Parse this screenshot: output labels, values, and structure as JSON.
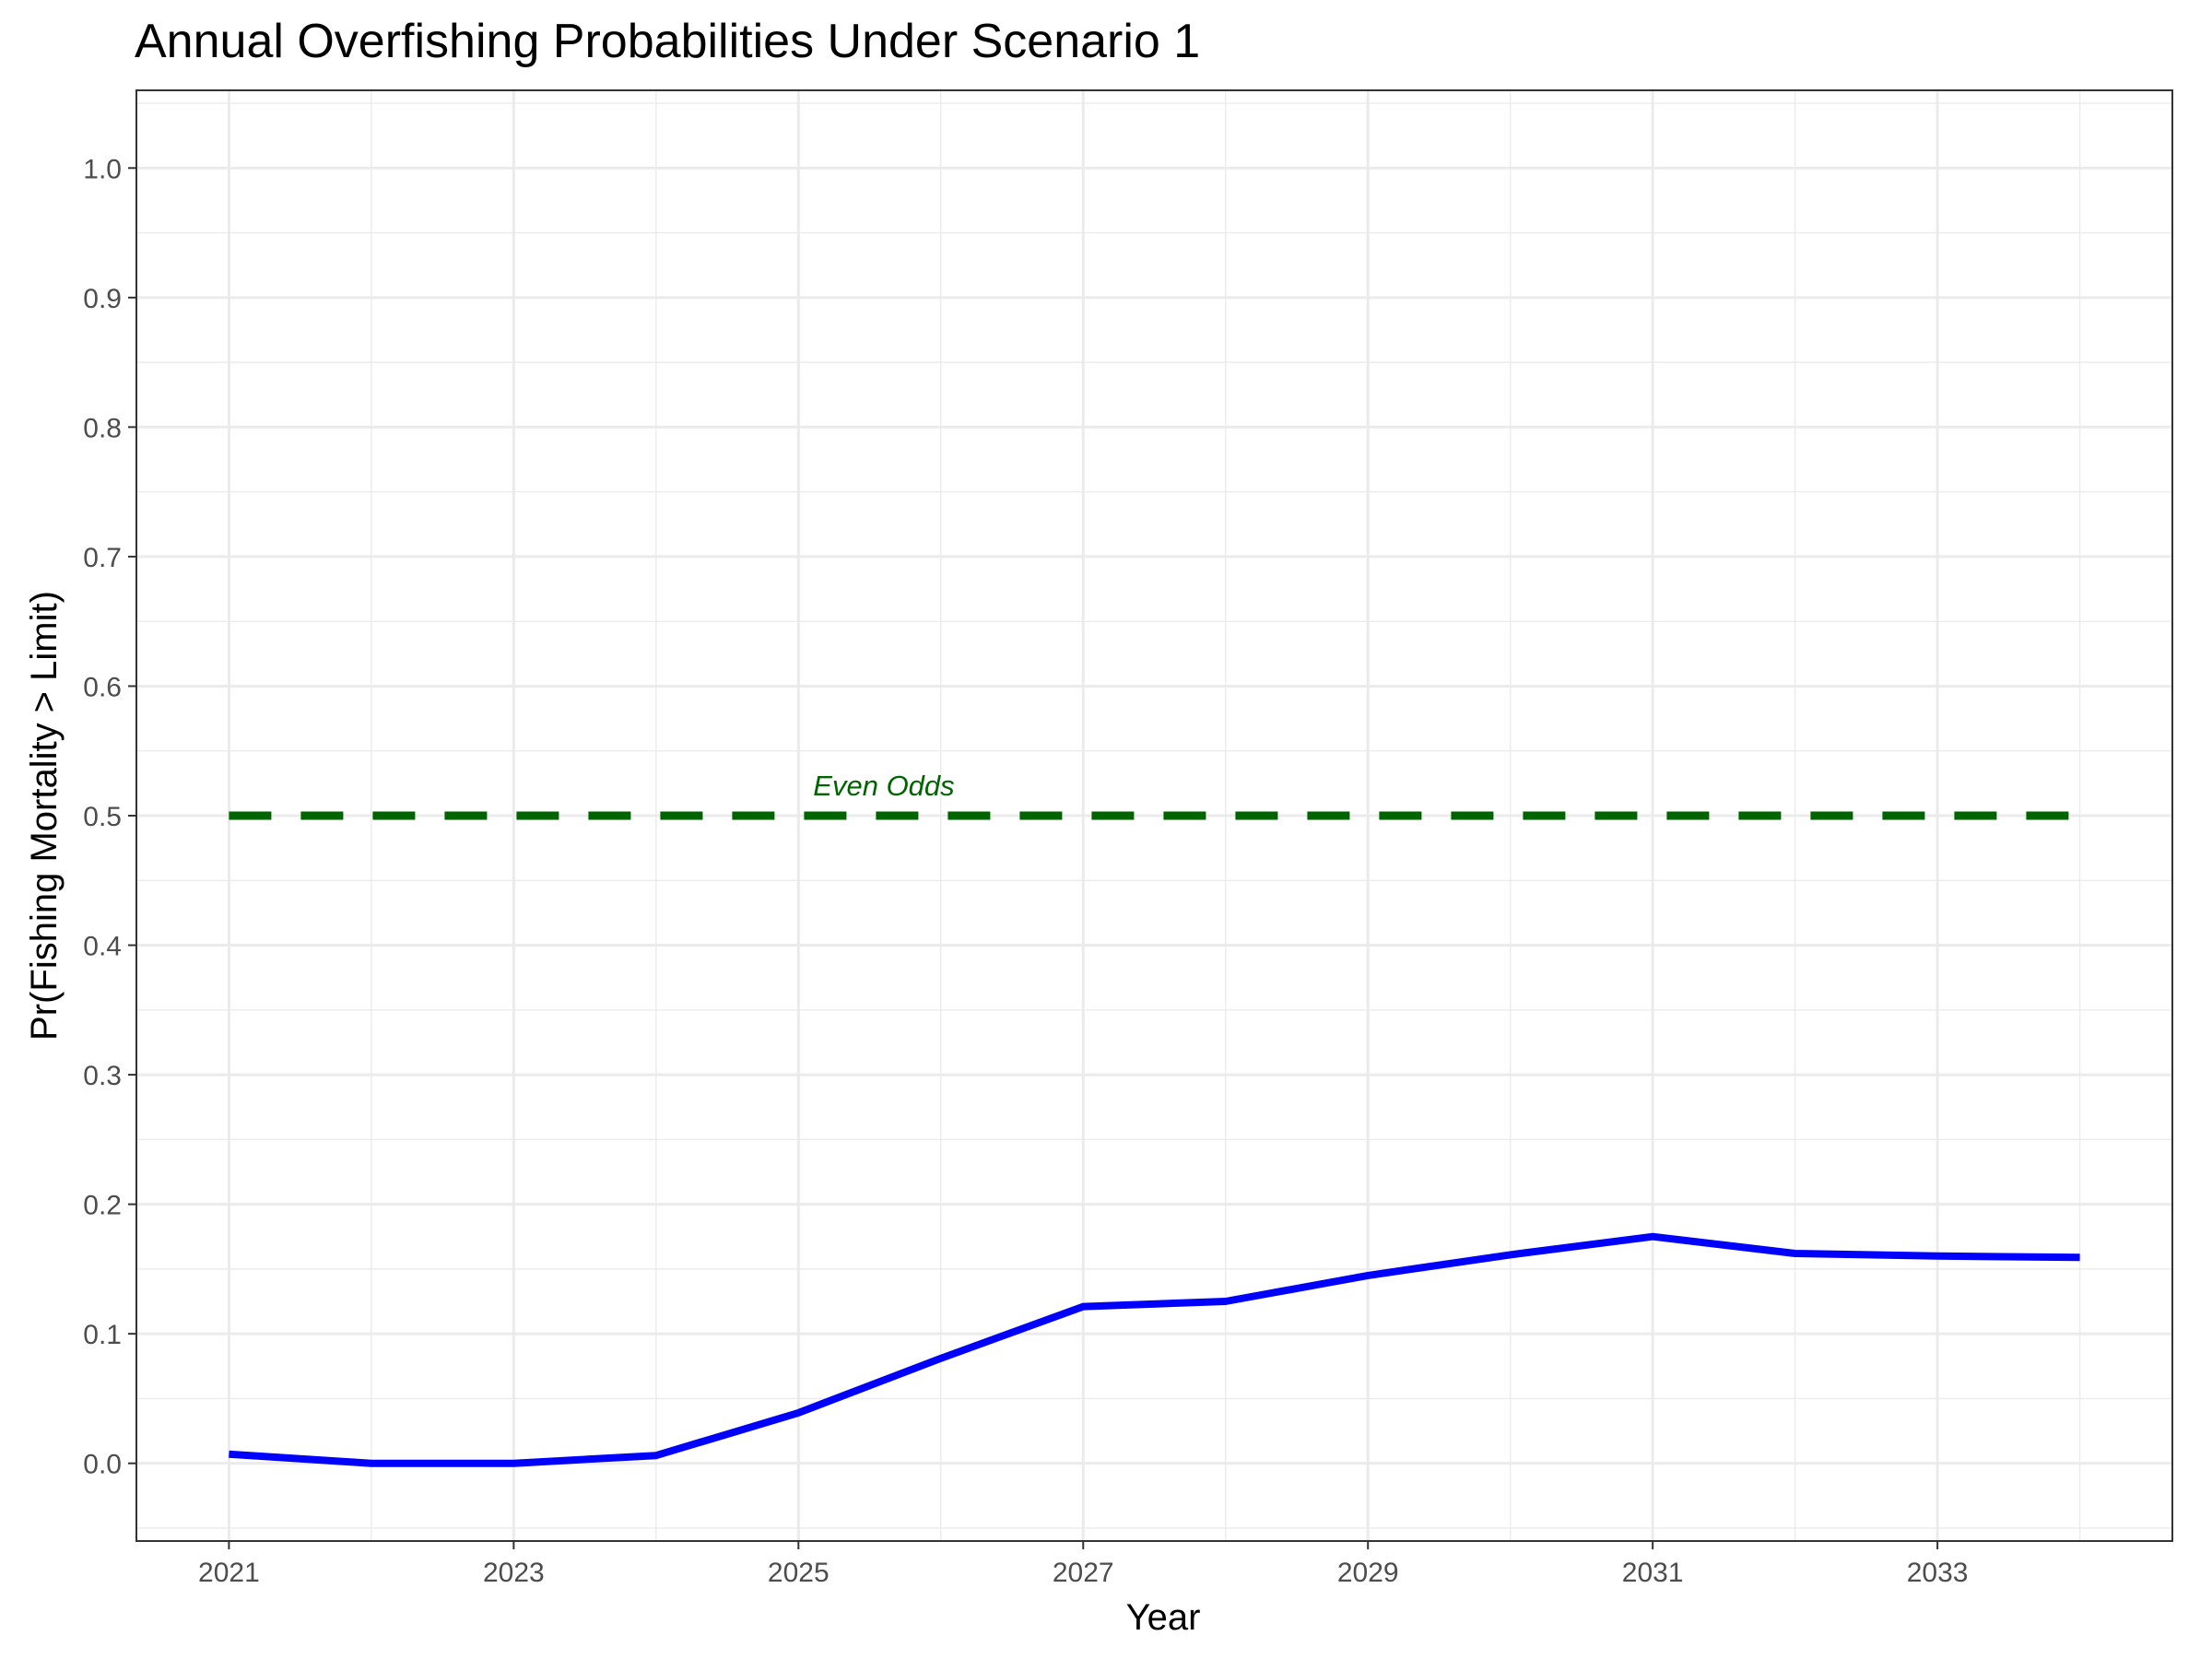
{
  "chart_data": {
    "type": "line",
    "title": "Annual Overfishing Probabilities Under Scenario 1",
    "xlabel": "Year",
    "ylabel": "Pr(Fishing Mortality > Limit)",
    "x": [
      2021,
      2022,
      2023,
      2024,
      2025,
      2026,
      2027,
      2028,
      2029,
      2030,
      2031,
      2032,
      2033,
      2034
    ],
    "series": [
      {
        "values": [
          0.007,
          0.0,
          0.0,
          0.006,
          0.039,
          0.081,
          0.121,
          0.125,
          0.145,
          0.161,
          0.175,
          0.162,
          0.16,
          0.159
        ],
        "color": "#0000ff"
      }
    ],
    "reference_line": {
      "y": 0.5,
      "color": "#006400",
      "style": "dashed",
      "label": "Even Odds",
      "label_x": 2025.6
    },
    "xlim": [
      2020.35,
      2034.65
    ],
    "ylim": [
      -0.06,
      1.06
    ],
    "x_ticks": [
      2021,
      2023,
      2025,
      2027,
      2029,
      2031,
      2033
    ],
    "x_minor": [
      2022,
      2024,
      2026,
      2028,
      2030,
      2032,
      2034
    ],
    "y_ticks": [
      0.0,
      0.1,
      0.2,
      0.3,
      0.4,
      0.5,
      0.6,
      0.7,
      0.8,
      0.9,
      1.0
    ],
    "y_tick_labels": [
      "0.0",
      "0.1",
      "0.2",
      "0.3",
      "0.4",
      "0.5",
      "0.6",
      "0.7",
      "0.8",
      "0.9",
      "1.0"
    ],
    "grid": true,
    "legend": "none"
  }
}
